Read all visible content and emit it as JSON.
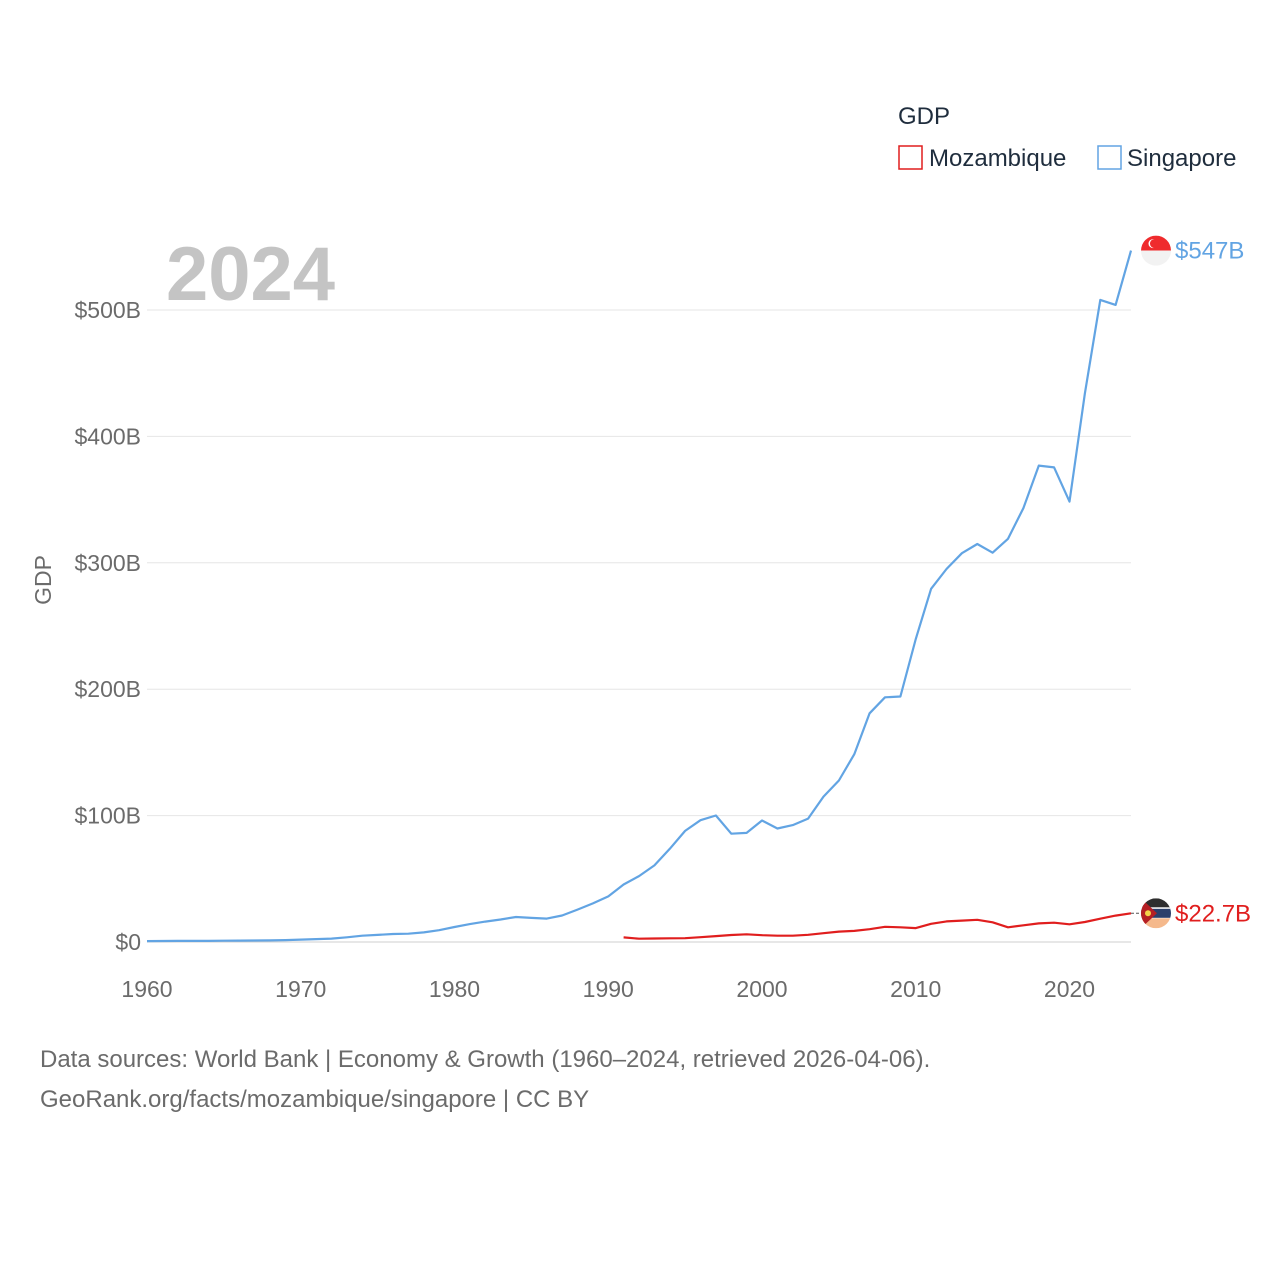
{
  "chart_data": {
    "type": "line",
    "title": "GDP",
    "year_label": "2024",
    "ylabel": "GDP",
    "xlabel": "",
    "xlim": [
      1960,
      2024
    ],
    "ylim": [
      0,
      550
    ],
    "x_ticks": [
      1960,
      1970,
      1980,
      1990,
      2000,
      2010,
      2020
    ],
    "x_tick_labels": [
      "1960",
      "1970",
      "1980",
      "1990",
      "2000",
      "2010",
      "2020"
    ],
    "y_ticks": [
      0,
      100,
      200,
      300,
      400,
      500
    ],
    "y_tick_labels": [
      "$0",
      "$100B",
      "$200B",
      "$300B",
      "$400B",
      "$500B"
    ],
    "unit": "billion USD",
    "legend": {
      "title": "GDP",
      "placement": "top-right"
    },
    "series": [
      {
        "name": "Mozambique",
        "color": "#e01e1e",
        "end_label": "$22.7B",
        "flag_icon": "mozambique-flag-icon",
        "x": [
          1991,
          1992,
          1993,
          1994,
          1995,
          1996,
          1997,
          1998,
          1999,
          2000,
          2001,
          2002,
          2003,
          2004,
          2005,
          2006,
          2007,
          2008,
          2009,
          2010,
          2011,
          2012,
          2013,
          2014,
          2015,
          2016,
          2017,
          2018,
          2019,
          2020,
          2021,
          2022,
          2023,
          2024
        ],
        "values": [
          3.6,
          2.6,
          2.8,
          2.9,
          3.0,
          3.8,
          4.7,
          5.5,
          6.1,
          5.4,
          5.0,
          5.0,
          5.7,
          7.0,
          8.2,
          8.8,
          10.1,
          12.0,
          11.6,
          11.0,
          14.4,
          16.3,
          16.9,
          17.6,
          15.6,
          11.6,
          13.2,
          14.7,
          15.3,
          14.0,
          15.8,
          18.4,
          20.9,
          22.7
        ]
      },
      {
        "name": "Singapore",
        "color": "#62a4e3",
        "end_label": "$547B",
        "flag_icon": "singapore-flag-icon",
        "x": [
          1960,
          1961,
          1962,
          1963,
          1964,
          1965,
          1966,
          1967,
          1968,
          1969,
          1970,
          1971,
          1972,
          1973,
          1974,
          1975,
          1976,
          1977,
          1978,
          1979,
          1980,
          1981,
          1982,
          1983,
          1984,
          1985,
          1986,
          1987,
          1988,
          1989,
          1990,
          1991,
          1992,
          1993,
          1994,
          1995,
          1996,
          1997,
          1998,
          1999,
          2000,
          2001,
          2002,
          2003,
          2004,
          2005,
          2006,
          2007,
          2008,
          2009,
          2010,
          2011,
          2012,
          2013,
          2014,
          2015,
          2016,
          2017,
          2018,
          2019,
          2020,
          2021,
          2022,
          2023,
          2024
        ],
        "values": [
          0.7,
          0.8,
          0.9,
          0.9,
          0.9,
          1.0,
          1.1,
          1.2,
          1.3,
          1.5,
          1.9,
          2.3,
          2.7,
          3.7,
          5.0,
          5.6,
          6.3,
          6.6,
          7.6,
          9.3,
          11.9,
          14.2,
          16.1,
          17.8,
          19.8,
          19.1,
          18.5,
          21.0,
          25.6,
          30.5,
          36.1,
          45.5,
          52.1,
          60.6,
          73.7,
          87.9,
          96.4,
          100.1,
          85.7,
          86.3,
          96.1,
          89.8,
          92.5,
          97.6,
          115.0,
          127.8,
          148.6,
          180.9,
          193.6,
          194.2,
          239.8,
          279.4,
          295.1,
          307.6,
          314.9,
          308.0,
          319.0,
          343.3,
          376.9,
          375.5,
          348.4,
          434.1,
          508.0,
          504.0,
          547.0
        ]
      }
    ]
  },
  "footer": {
    "line1": "Data sources: World Bank | Economy & Growth (1960–2024, retrieved 2026-04-06).",
    "line2": "GeoRank.org/facts/mozambique/singapore | CC BY"
  }
}
